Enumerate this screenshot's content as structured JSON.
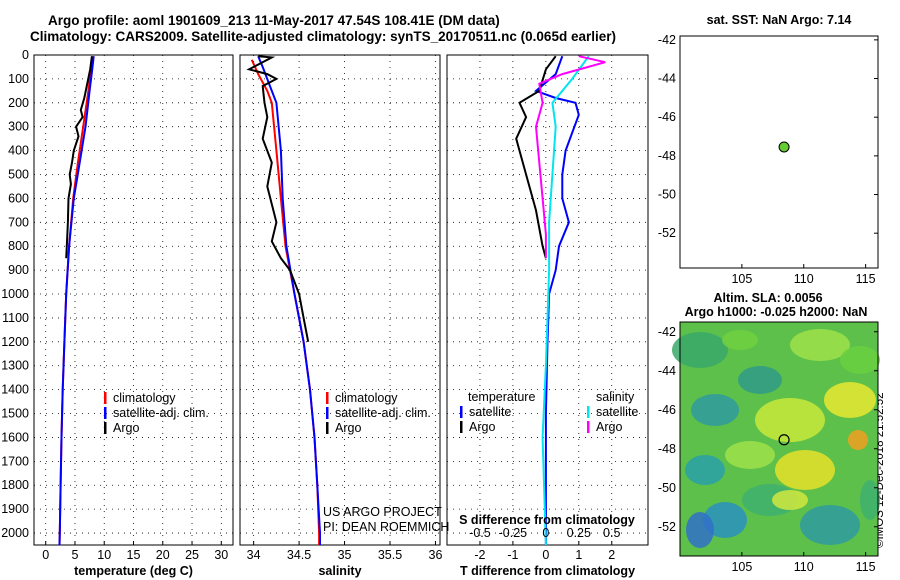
{
  "header": {
    "line1": "Argo profile: aoml 1901609_213 11-May-2017 47.54S 108.41E (DM data)",
    "line2": "Climatology: CARS2009. Satellite-adjusted climatology: synTS_20170511.nc (0.065d earlier)"
  },
  "stamp": "©IMOS 12-Dec-2018 21:52:52",
  "colors": {
    "climatology": "#ff0000",
    "satellite": "#0000ff",
    "argo": "#000000",
    "sat_salinity": "#00e5ee",
    "argo_salinity_diff": "#ff00ff"
  },
  "chart_data": [
    {
      "type": "line",
      "id": "temperature",
      "xlabel": "temperature (deg C)",
      "xlim": [
        -2,
        32
      ],
      "xticks": [
        0,
        5,
        10,
        15,
        20,
        25,
        30
      ],
      "ylim": [
        2050,
        0
      ],
      "yticks": [
        0,
        100,
        200,
        300,
        400,
        500,
        600,
        700,
        800,
        900,
        1000,
        1100,
        1200,
        1300,
        1400,
        1500,
        1600,
        1700,
        1800,
        1900,
        2000
      ],
      "legend": [
        "climatology",
        "satellite-adj. clim.",
        "Argo"
      ],
      "series": [
        {
          "name": "climatology",
          "color": "#ff0000",
          "points": [
            [
              8.0,
              5
            ],
            [
              7.8,
              50
            ],
            [
              7.3,
              150
            ],
            [
              6.4,
              300
            ],
            [
              5.5,
              450
            ],
            [
              4.7,
              600
            ],
            [
              4.0,
              800
            ],
            [
              3.5,
              1000
            ],
            [
              3.2,
              1200
            ],
            [
              2.9,
              1400
            ],
            [
              2.7,
              1600
            ],
            [
              2.55,
              1800
            ],
            [
              2.4,
              2000
            ],
            [
              2.35,
              2050
            ]
          ]
        },
        {
          "name": "satellite-adj. clim.",
          "color": "#0000ff",
          "points": [
            [
              8.2,
              5
            ],
            [
              8.0,
              50
            ],
            [
              7.5,
              150
            ],
            [
              6.8,
              300
            ],
            [
              5.8,
              450
            ],
            [
              4.8,
              600
            ],
            [
              4.0,
              800
            ],
            [
              3.5,
              1000
            ],
            [
              3.2,
              1200
            ],
            [
              2.9,
              1400
            ],
            [
              2.7,
              1600
            ],
            [
              2.55,
              1800
            ],
            [
              2.4,
              2000
            ],
            [
              2.35,
              2050
            ]
          ]
        },
        {
          "name": "Argo",
          "color": "#000000",
          "points": [
            [
              7.9,
              5
            ],
            [
              7.6,
              60
            ],
            [
              6.6,
              180
            ],
            [
              6.0,
              230
            ],
            [
              6.3,
              260
            ],
            [
              5.2,
              300
            ],
            [
              5.6,
              340
            ],
            [
              4.8,
              400
            ],
            [
              4.5,
              450
            ],
            [
              4.1,
              500
            ],
            [
              4.3,
              540
            ],
            [
              3.9,
              600
            ],
            [
              3.8,
              700
            ],
            [
              3.6,
              800
            ],
            [
              3.5,
              850
            ]
          ]
        }
      ]
    },
    {
      "type": "line",
      "id": "salinity",
      "xlabel": "salinity",
      "xlim": [
        33.85,
        36.05
      ],
      "xticks": [
        34,
        34.5,
        35,
        35.5,
        36
      ],
      "ylim": [
        2050,
        0
      ],
      "legend": [
        "climatology",
        "satellite-adj. clim.",
        "Argo"
      ],
      "series": [
        {
          "name": "climatology",
          "color": "#ff0000",
          "points": [
            [
              33.98,
              20
            ],
            [
              34.05,
              80
            ],
            [
              34.15,
              150
            ],
            [
              34.2,
              200
            ],
            [
              34.25,
              400
            ],
            [
              34.3,
              600
            ],
            [
              34.35,
              800
            ],
            [
              34.45,
              1000
            ],
            [
              34.55,
              1200
            ],
            [
              34.62,
              1400
            ],
            [
              34.67,
              1600
            ],
            [
              34.7,
              1800
            ],
            [
              34.72,
              2000
            ],
            [
              34.72,
              2050
            ]
          ]
        },
        {
          "name": "satellite-adj. clim.",
          "color": "#0000ff",
          "points": [
            [
              34.05,
              5
            ],
            [
              34.1,
              50
            ],
            [
              34.2,
              150
            ],
            [
              34.25,
              200
            ],
            [
              34.3,
              400
            ],
            [
              34.32,
              600
            ],
            [
              34.36,
              800
            ],
            [
              34.45,
              1000
            ],
            [
              34.55,
              1200
            ],
            [
              34.62,
              1400
            ],
            [
              34.67,
              1600
            ],
            [
              34.7,
              1800
            ],
            [
              34.73,
              2000
            ],
            [
              34.73,
              2050
            ]
          ]
        },
        {
          "name": "Argo",
          "color": "#000000",
          "points": [
            [
              34.05,
              5
            ],
            [
              34.2,
              10
            ],
            [
              33.95,
              60
            ],
            [
              34.15,
              80
            ],
            [
              34.25,
              100
            ],
            [
              34.1,
              130
            ],
            [
              34.12,
              200
            ],
            [
              34.15,
              260
            ],
            [
              34.1,
              350
            ],
            [
              34.2,
              450
            ],
            [
              34.15,
              550
            ],
            [
              34.25,
              700
            ],
            [
              34.2,
              780
            ],
            [
              34.3,
              850
            ],
            [
              34.4,
              900
            ],
            [
              34.5,
              1000
            ],
            [
              34.55,
              1100
            ],
            [
              34.6,
              1200
            ]
          ]
        }
      ]
    },
    {
      "type": "line",
      "id": "difference",
      "xlabel": "T difference from climatology",
      "top_xlabel": "S difference from climatology",
      "xlim": [
        -3,
        3.1
      ],
      "xticks": [
        -2,
        -1,
        0,
        1,
        2
      ],
      "top_xticks": [
        "-0.5",
        "-0.25",
        "0",
        "0.25",
        "0.5"
      ],
      "ylim": [
        2050,
        0
      ],
      "legend": {
        "temperature": [
          "satellite",
          "Argo"
        ],
        "salinity": [
          "satellite",
          "Argo"
        ]
      },
      "series": [
        {
          "name": "temperature satellite",
          "color": "#0000ff",
          "points": [
            [
              0.5,
              5
            ],
            [
              0.3,
              80
            ],
            [
              -0.3,
              150
            ],
            [
              0.3,
              180
            ],
            [
              0.9,
              200
            ],
            [
              1.0,
              250
            ],
            [
              0.6,
              400
            ],
            [
              0.5,
              500
            ],
            [
              0.5,
              600
            ],
            [
              0.7,
              700
            ],
            [
              0.4,
              800
            ],
            [
              0.3,
              900
            ],
            [
              0.1,
              1000
            ],
            [
              0.05,
              1200
            ],
            [
              0,
              1500
            ],
            [
              0,
              2050
            ]
          ]
        },
        {
          "name": "temperature Argo",
          "color": "#000000",
          "points": [
            [
              0.3,
              5
            ],
            [
              0,
              60
            ],
            [
              -0.2,
              150
            ],
            [
              -0.8,
              200
            ],
            [
              -0.6,
              260
            ],
            [
              -0.9,
              350
            ],
            [
              -0.7,
              450
            ],
            [
              -0.5,
              550
            ],
            [
              -0.3,
              650
            ],
            [
              -0.1,
              800
            ],
            [
              0,
              850
            ]
          ]
        },
        {
          "name": "salinity satellite",
          "color": "#00e5ee",
          "points": [
            [
              1.3,
              5
            ],
            [
              0.8,
              100
            ],
            [
              0.2,
              200
            ],
            [
              0.3,
              300
            ],
            [
              0.2,
              500
            ],
            [
              0.1,
              700
            ],
            [
              0.1,
              900
            ],
            [
              0.05,
              1100
            ],
            [
              0,
              1300
            ],
            [
              -0.1,
              1600
            ],
            [
              0,
              2050
            ]
          ]
        },
        {
          "name": "salinity Argo",
          "color": "#ff00ff",
          "points": [
            [
              1.0,
              5
            ],
            [
              1.8,
              30
            ],
            [
              0.5,
              80
            ],
            [
              -0.2,
              120
            ],
            [
              -0.1,
              200
            ],
            [
              -0.3,
              300
            ],
            [
              -0.2,
              450
            ],
            [
              -0.1,
              600
            ],
            [
              0,
              750
            ],
            [
              0,
              850
            ]
          ]
        }
      ]
    },
    {
      "type": "scatter",
      "id": "sst_map",
      "title": "sat. SST: NaN Argo: 7.14",
      "xlim": [
        100,
        116
      ],
      "ylim": [
        -53.8,
        -41.8
      ],
      "xticks": [
        105,
        110,
        115
      ],
      "yticks": [
        -42,
        -44,
        -46,
        -48,
        -50,
        -52
      ],
      "points": [
        {
          "x": 108.41,
          "y": -47.54,
          "color": "#66cc33"
        }
      ]
    },
    {
      "type": "heatmap",
      "id": "sla_map",
      "title_line1": "Altim. SLA: 0.0056",
      "title_line2": "Argo h1000: -0.025 h2000: NaN",
      "xlim": [
        100,
        116
      ],
      "ylim": [
        -53.5,
        -41.5
      ],
      "xticks": [
        105,
        110,
        115
      ],
      "yticks": [
        -42,
        -44,
        -46,
        -48,
        -50,
        -52
      ],
      "points": [
        {
          "x": 108.41,
          "y": -47.54
        }
      ]
    }
  ],
  "annotations": {
    "credit1": "US ARGO PROJECT",
    "credit2": "PI: DEAN ROEMMICH",
    "legend_temperature": "temperature",
    "legend_salinity": "salinity"
  }
}
